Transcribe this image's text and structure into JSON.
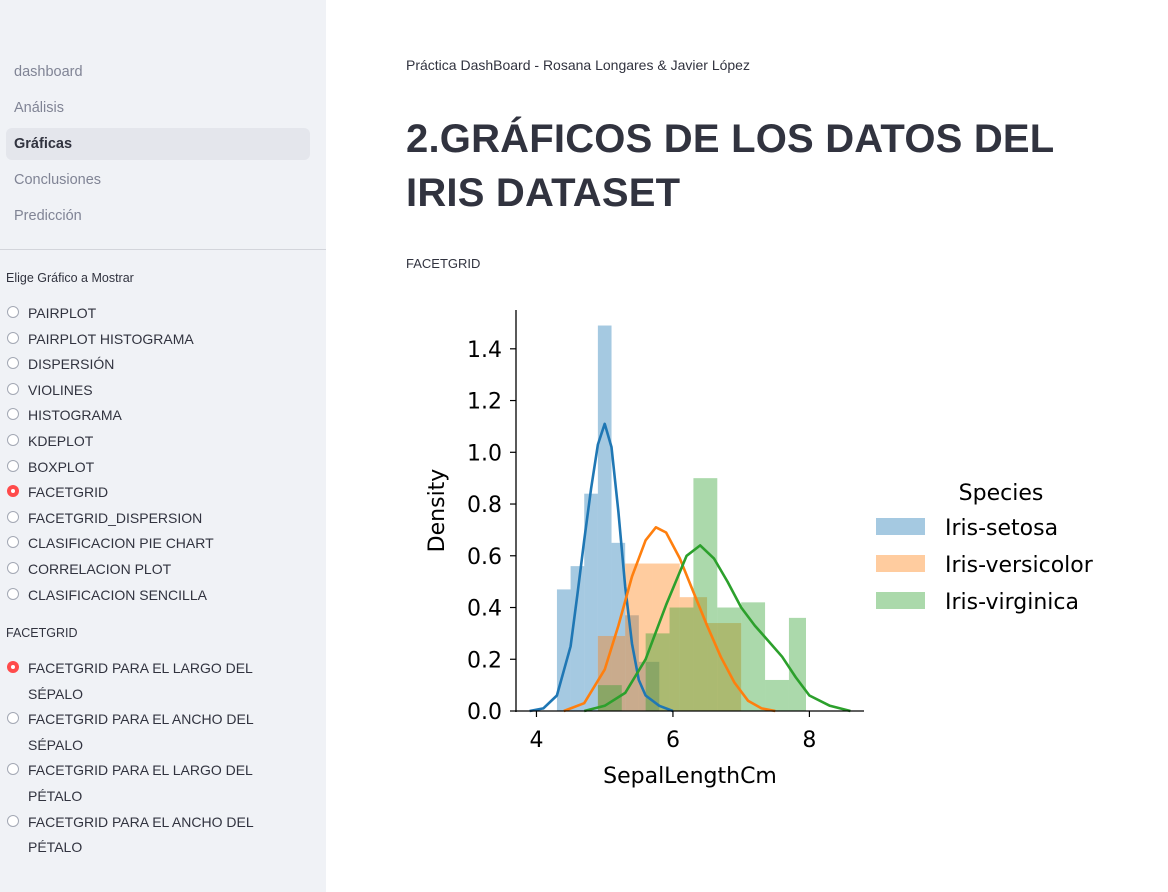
{
  "sidebar": {
    "nav": [
      {
        "label": "dashboard",
        "active": false
      },
      {
        "label": "Análisis",
        "active": false
      },
      {
        "label": "Gráficas",
        "active": true
      },
      {
        "label": "Conclusiones",
        "active": false
      },
      {
        "label": "Predicción",
        "active": false
      }
    ],
    "chart_group": {
      "label": "Elige Gráfico a Mostrar",
      "options": [
        "PAIRPLOT",
        "PAIRPLOT HISTOGRAMA",
        "DISPERSIÓN",
        "VIOLINES",
        "HISTOGRAMA",
        "KDEPLOT",
        "BOXPLOT",
        "FACETGRID",
        "FACETGRID_DISPERSION",
        "CLASIFICACION PIE CHART",
        "CORRELACION PLOT",
        "CLASIFICACION SENCILLA"
      ],
      "selected": "FACETGRID"
    },
    "facet_group": {
      "label": "FACETGRID",
      "options": [
        "FACETGRID PARA EL LARGO DEL SÉPALO",
        "FACETGRID PARA EL ANCHO DEL SÉPALO",
        "FACETGRID PARA EL LARGO DEL PÉTALO",
        "FACETGRID PARA EL ANCHO DEL PÉTALO"
      ],
      "selected": "FACETGRID PARA EL LARGO DEL SÉPALO"
    }
  },
  "main": {
    "caption": "Práctica DashBoard - Rosana Longares & Javier López",
    "title": "2.GRÁFICOS DE LOS DATOS DEL IRIS DATASET",
    "subheader": "FACETGRID"
  },
  "chart_data": {
    "type": "bar",
    "xlabel": "SepalLengthCm",
    "ylabel": "Density",
    "xlim": [
      3.7,
      8.8
    ],
    "ylim": [
      0,
      1.55
    ],
    "xticks": [
      4,
      6,
      8
    ],
    "yticks": [
      0.0,
      0.2,
      0.4,
      0.6,
      0.8,
      1.0,
      1.2,
      1.4
    ],
    "grid": false,
    "legend": {
      "title": "Species",
      "position": "right"
    },
    "series": [
      {
        "name": "Iris-setosa",
        "color": "#1f77b4",
        "hist": [
          {
            "x0": 4.3,
            "x1": 4.5,
            "density": 0.47
          },
          {
            "x0": 4.5,
            "x1": 4.7,
            "density": 0.56
          },
          {
            "x0": 4.7,
            "x1": 4.9,
            "density": 0.84
          },
          {
            "x0": 4.9,
            "x1": 5.1,
            "density": 1.49
          },
          {
            "x0": 5.1,
            "x1": 5.3,
            "density": 0.65
          },
          {
            "x0": 5.3,
            "x1": 5.5,
            "density": 0.37
          },
          {
            "x0": 5.5,
            "x1": 5.8,
            "density": 0.19
          }
        ],
        "kde": [
          [
            3.9,
            0.0
          ],
          [
            4.1,
            0.01
          ],
          [
            4.3,
            0.06
          ],
          [
            4.5,
            0.25
          ],
          [
            4.6,
            0.45
          ],
          [
            4.7,
            0.66
          ],
          [
            4.8,
            0.86
          ],
          [
            4.9,
            1.03
          ],
          [
            5.0,
            1.11
          ],
          [
            5.1,
            1.02
          ],
          [
            5.2,
            0.77
          ],
          [
            5.3,
            0.48
          ],
          [
            5.4,
            0.26
          ],
          [
            5.5,
            0.12
          ],
          [
            5.6,
            0.06
          ],
          [
            5.8,
            0.02
          ],
          [
            6.0,
            0.0
          ]
        ]
      },
      {
        "name": "Iris-versicolor",
        "color": "#ff7f0e",
        "hist": [
          {
            "x0": 4.9,
            "x1": 5.3,
            "density": 0.29
          },
          {
            "x0": 5.3,
            "x1": 5.7,
            "density": 0.57
          },
          {
            "x0": 5.7,
            "x1": 6.1,
            "density": 0.57
          },
          {
            "x0": 6.1,
            "x1": 6.5,
            "density": 0.44
          },
          {
            "x0": 6.5,
            "x1": 7.0,
            "density": 0.34
          }
        ],
        "kde": [
          [
            4.4,
            0.0
          ],
          [
            4.7,
            0.03
          ],
          [
            5.0,
            0.16
          ],
          [
            5.2,
            0.33
          ],
          [
            5.4,
            0.52
          ],
          [
            5.6,
            0.66
          ],
          [
            5.75,
            0.71
          ],
          [
            5.9,
            0.69
          ],
          [
            6.1,
            0.59
          ],
          [
            6.3,
            0.46
          ],
          [
            6.5,
            0.33
          ],
          [
            6.7,
            0.21
          ],
          [
            6.9,
            0.11
          ],
          [
            7.1,
            0.04
          ],
          [
            7.3,
            0.01
          ],
          [
            7.5,
            0.0
          ]
        ]
      },
      {
        "name": "Iris-virginica",
        "color": "#2ca02c",
        "hist": [
          {
            "x0": 4.9,
            "x1": 5.25,
            "density": 0.1
          },
          {
            "x0": 5.6,
            "x1": 5.95,
            "density": 0.3
          },
          {
            "x0": 5.95,
            "x1": 6.3,
            "density": 0.4
          },
          {
            "x0": 6.3,
            "x1": 6.65,
            "density": 0.9
          },
          {
            "x0": 6.65,
            "x1": 7.0,
            "density": 0.4
          },
          {
            "x0": 7.0,
            "x1": 7.35,
            "density": 0.42
          },
          {
            "x0": 7.35,
            "x1": 7.7,
            "density": 0.12
          },
          {
            "x0": 7.7,
            "x1": 7.95,
            "density": 0.36
          }
        ],
        "kde": [
          [
            4.7,
            0.0
          ],
          [
            5.0,
            0.02
          ],
          [
            5.3,
            0.07
          ],
          [
            5.6,
            0.2
          ],
          [
            5.9,
            0.41
          ],
          [
            6.2,
            0.6
          ],
          [
            6.4,
            0.64
          ],
          [
            6.6,
            0.59
          ],
          [
            6.8,
            0.5
          ],
          [
            7.0,
            0.4
          ],
          [
            7.2,
            0.33
          ],
          [
            7.4,
            0.27
          ],
          [
            7.6,
            0.21
          ],
          [
            7.8,
            0.13
          ],
          [
            8.0,
            0.06
          ],
          [
            8.3,
            0.02
          ],
          [
            8.6,
            0.0
          ]
        ]
      }
    ]
  }
}
